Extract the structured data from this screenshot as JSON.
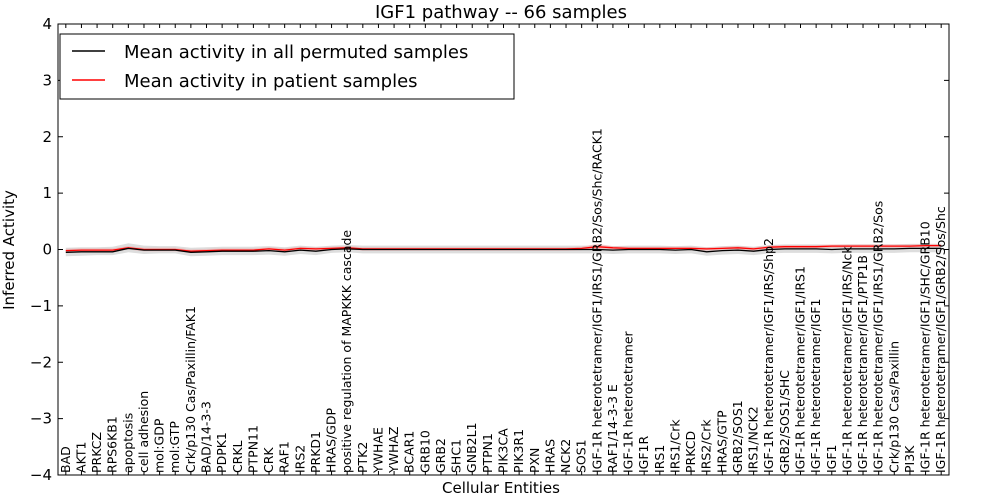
{
  "chart_data": {
    "type": "line",
    "title": "IGF1 pathway -- 66 samples",
    "xlabel": "Cellular Entities",
    "ylabel": "Inferred Activity",
    "ylim": [
      -4,
      4
    ],
    "yticks": [
      -4,
      -3,
      -2,
      -1,
      0,
      1,
      2,
      3,
      4
    ],
    "ytick_labels": [
      "−4",
      "−3",
      "−2",
      "−1",
      "0",
      "1",
      "2",
      "3",
      "4"
    ],
    "legend_position": "top-left",
    "categories": [
      "BAD",
      "AKT1",
      "PRKCZ",
      "RPS6KB1",
      "apoptosis",
      "cell adhesion",
      "mol:GDP",
      "mol:GTP",
      "Crk/p130 Cas/Paxillin/FAK1",
      "BAD/14-3-3",
      "PDPK1",
      "CRKL",
      "PTPN11",
      "CRK",
      "RAF1",
      "IRS2",
      "PRKD1",
      "HRAS/GDP",
      "positive regulation of MAPKKK cascade",
      "PTK2",
      "YWHAE",
      "YWHAZ",
      "BCAR1",
      "GRB10",
      "GRB2",
      "SHC1",
      "GNB2L1",
      "PTPN1",
      "PIK3CA",
      "PIK3R1",
      "PXN",
      "HRAS",
      "NCK2",
      "SOS1",
      "IGF-1R heterotetramer/IGF1/IRS1/GRB2/Sos/Shc/RACK1",
      "RAF1/14-3-3 E",
      "IGF-1R heterotetramer",
      "IGF1R",
      "IRS1",
      "IRS1/Crk",
      "PRKCD",
      "IRS2/Crk",
      "HRAS/GTP",
      "GRB2/SOS1",
      "IRS1/NCK2",
      "IGF-1R heterotetramer/IGF1/IRS/Shp2",
      "GRB2/SOS1/SHC",
      "IGF-1R heterotetramer/IGF1/IRS1",
      "IGF-1R heterotetramer/IGF1",
      "IGF1",
      "IGF-1R heterotetramer/IGF1/IRS/Nck",
      "IGF-1R heterotetramer/IGF1/PTP1B",
      "IGF-1R heterotetramer/IGF1/IRS1/GRB2/Sos",
      "Crk/p130 Cas/Paxillin",
      "PI3K",
      "IGF-1R heterotetramer/IGF1/SHC/GRB10",
      "IGF-1R heterotetramer/IGF1/GRB2/Sos/Shc"
    ],
    "series": [
      {
        "name": "Mean activity in all permuted samples",
        "color": "#000000",
        "values": [
          -0.05,
          -0.04,
          -0.04,
          -0.04,
          0.02,
          -0.01,
          -0.01,
          -0.01,
          -0.05,
          -0.04,
          -0.03,
          -0.03,
          -0.03,
          -0.02,
          -0.04,
          -0.01,
          -0.03,
          0.0,
          0.01,
          0.0,
          0.0,
          0.0,
          0.0,
          0.0,
          0.0,
          0.0,
          0.0,
          0.0,
          0.0,
          0.0,
          0.0,
          0.0,
          0.0,
          0.0,
          0.0,
          -0.01,
          0.0,
          0.0,
          0.0,
          -0.01,
          0.0,
          -0.04,
          -0.02,
          -0.01,
          -0.03,
          0.0,
          0.01,
          0.01,
          0.01,
          0.0,
          0.01,
          0.01,
          0.01,
          0.01,
          0.02,
          0.02,
          0.02
        ],
        "band_low": [
          -0.12,
          -0.11,
          -0.1,
          -0.1,
          -0.05,
          -0.08,
          -0.07,
          -0.07,
          -0.12,
          -0.11,
          -0.1,
          -0.1,
          -0.1,
          -0.09,
          -0.11,
          -0.08,
          -0.1,
          -0.06,
          -0.05,
          -0.07,
          -0.07,
          -0.07,
          -0.07,
          -0.07,
          -0.07,
          -0.07,
          -0.07,
          -0.07,
          -0.07,
          -0.07,
          -0.07,
          -0.07,
          -0.07,
          -0.07,
          -0.07,
          -0.08,
          -0.07,
          -0.07,
          -0.07,
          -0.08,
          -0.07,
          -0.11,
          -0.09,
          -0.08,
          -0.1,
          -0.07,
          -0.06,
          -0.06,
          -0.06,
          -0.07,
          -0.06,
          -0.06,
          -0.06,
          -0.06,
          -0.05,
          -0.05,
          -0.05
        ],
        "band_high": [
          0.03,
          0.04,
          0.04,
          0.05,
          0.11,
          0.07,
          0.06,
          0.06,
          0.03,
          0.04,
          0.05,
          0.05,
          0.05,
          0.06,
          0.04,
          0.07,
          0.05,
          0.07,
          0.08,
          0.07,
          0.07,
          0.07,
          0.07,
          0.07,
          0.07,
          0.07,
          0.07,
          0.07,
          0.07,
          0.07,
          0.07,
          0.07,
          0.07,
          0.07,
          0.07,
          0.06,
          0.07,
          0.07,
          0.07,
          0.06,
          0.07,
          0.04,
          0.06,
          0.07,
          0.05,
          0.08,
          0.09,
          0.09,
          0.09,
          0.08,
          0.09,
          0.09,
          0.09,
          0.09,
          0.1,
          0.1,
          0.1
        ]
      },
      {
        "name": "Mean activity in patient samples",
        "color": "#ff0000",
        "values": [
          -0.02,
          -0.01,
          -0.01,
          -0.01,
          0.03,
          0.0,
          0.0,
          0.0,
          -0.03,
          -0.02,
          -0.01,
          -0.01,
          -0.01,
          0.01,
          -0.01,
          0.02,
          0.01,
          0.02,
          0.03,
          0.01,
          0.01,
          0.01,
          0.01,
          0.01,
          0.01,
          0.01,
          0.01,
          0.01,
          0.01,
          0.01,
          0.01,
          0.01,
          0.01,
          0.02,
          0.05,
          0.03,
          0.02,
          0.02,
          0.02,
          0.02,
          0.02,
          0.01,
          0.02,
          0.03,
          0.01,
          0.04,
          0.05,
          0.05,
          0.05,
          0.06,
          0.06,
          0.06,
          0.06,
          0.06,
          0.06,
          0.07,
          0.07
        ],
        "band_low": [
          -0.05,
          -0.04,
          -0.04,
          -0.04,
          0.0,
          -0.03,
          -0.03,
          -0.03,
          -0.06,
          -0.05,
          -0.04,
          -0.04,
          -0.04,
          -0.02,
          -0.04,
          -0.01,
          -0.02,
          -0.01,
          0.0,
          -0.02,
          -0.02,
          -0.02,
          -0.02,
          -0.02,
          -0.02,
          -0.02,
          -0.02,
          -0.02,
          -0.02,
          -0.02,
          -0.02,
          -0.02,
          -0.02,
          -0.01,
          0.01,
          0.0,
          -0.01,
          -0.01,
          -0.01,
          -0.01,
          -0.01,
          -0.02,
          -0.01,
          0.0,
          -0.02,
          0.01,
          0.02,
          0.02,
          0.02,
          0.03,
          0.03,
          0.03,
          0.03,
          0.03,
          0.03,
          0.04,
          0.04
        ],
        "band_high": [
          0.01,
          0.02,
          0.02,
          0.02,
          0.06,
          0.03,
          0.03,
          0.03,
          0.0,
          0.01,
          0.02,
          0.02,
          0.02,
          0.04,
          0.02,
          0.05,
          0.04,
          0.05,
          0.06,
          0.04,
          0.04,
          0.04,
          0.04,
          0.04,
          0.04,
          0.04,
          0.04,
          0.04,
          0.04,
          0.04,
          0.04,
          0.04,
          0.04,
          0.05,
          0.1,
          0.06,
          0.05,
          0.05,
          0.05,
          0.05,
          0.05,
          0.04,
          0.05,
          0.06,
          0.04,
          0.07,
          0.08,
          0.08,
          0.08,
          0.09,
          0.09,
          0.09,
          0.09,
          0.09,
          0.09,
          0.1,
          0.1
        ]
      }
    ],
    "band_colors": [
      "#d9d9d9",
      "#f4a6a6"
    ]
  }
}
